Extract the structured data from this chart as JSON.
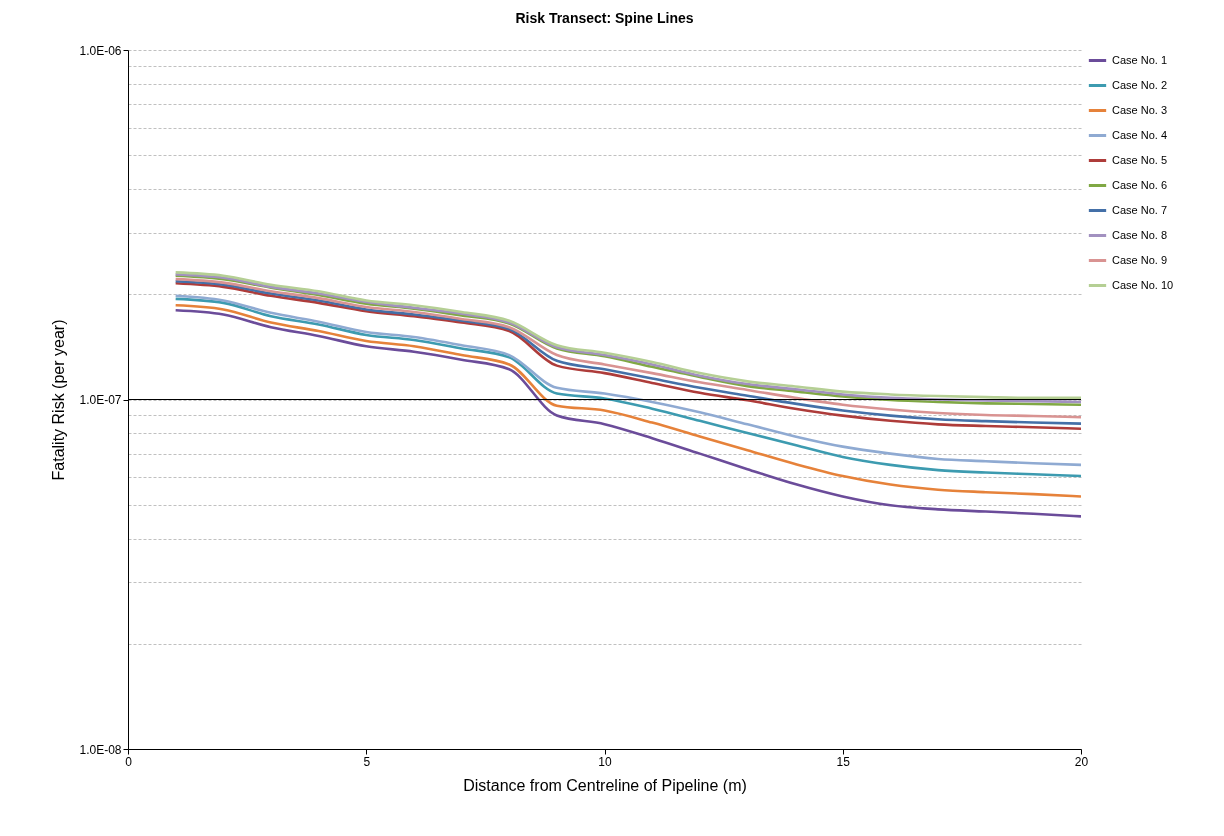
{
  "chart_data": {
    "type": "line",
    "title": "Risk Transect: Spine Lines",
    "xlabel": "Distance from Centreline of Pipeline (m)",
    "ylabel": "Fatality Risk (per year)",
    "x": [
      1,
      2,
      3,
      4,
      5,
      6,
      7,
      8,
      9,
      10,
      11,
      12,
      13,
      14,
      15,
      16,
      17,
      18,
      19,
      20
    ],
    "xlim": [
      0,
      20
    ],
    "xticks": [
      0,
      5,
      10,
      15,
      20
    ],
    "ylim": [
      1e-08,
      1e-06
    ],
    "log": true,
    "grid": "y",
    "legend": "right",
    "ref_lines": [
      {
        "axis": "y",
        "value": 1e-07,
        "color": "#000000"
      }
    ],
    "yticks": [
      {
        "value": 1e-08,
        "label": "1.0E-08"
      },
      {
        "value": 2e-08,
        "label": null
      },
      {
        "value": 3e-08,
        "label": null
      },
      {
        "value": 4e-08,
        "label": null
      },
      {
        "value": 5e-08,
        "label": null
      },
      {
        "value": 6e-08,
        "label": null
      },
      {
        "value": 7e-08,
        "label": null
      },
      {
        "value": 8e-08,
        "label": null
      },
      {
        "value": 9e-08,
        "label": null
      },
      {
        "value": 1e-07,
        "label": "1.0E-07"
      },
      {
        "value": 2e-07,
        "label": null
      },
      {
        "value": 3e-07,
        "label": null
      },
      {
        "value": 4e-07,
        "label": null
      },
      {
        "value": 5e-07,
        "label": null
      },
      {
        "value": 6e-07,
        "label": null
      },
      {
        "value": 7e-07,
        "label": null
      },
      {
        "value": 8e-07,
        "label": null
      },
      {
        "value": 9e-07,
        "label": null
      },
      {
        "value": 1e-06,
        "label": "1.0E-06"
      }
    ],
    "series": [
      {
        "name": "Case No. 1",
        "color": "#6b4c9a",
        "values": [
          1.8e-07,
          1.75e-07,
          1.61e-07,
          1.52e-07,
          1.42e-07,
          1.37e-07,
          1.3e-07,
          1.22e-07,
          9e-08,
          8.5e-08,
          7.75e-08,
          7e-08,
          6.32e-08,
          5.73e-08,
          5.28e-08,
          4.98e-08,
          4.85e-08,
          4.78e-08,
          4.71e-08,
          4.63e-08
        ]
      },
      {
        "name": "Case No. 2",
        "color": "#3d9bb0",
        "values": [
          1.94e-07,
          1.89e-07,
          1.73e-07,
          1.64e-07,
          1.53e-07,
          1.48e-07,
          1.4e-07,
          1.32e-07,
          1.04e-07,
          1.007e-07,
          9.41e-08,
          8.69e-08,
          8.02e-08,
          7.41e-08,
          6.85e-08,
          6.5e-08,
          6.28e-08,
          6.18e-08,
          6.11e-08,
          6.04e-08
        ]
      },
      {
        "name": "Case No. 3",
        "color": "#e6823a",
        "values": [
          1.86e-07,
          1.81e-07,
          1.66e-07,
          1.57e-07,
          1.47e-07,
          1.42e-07,
          1.34e-07,
          1.26e-07,
          9.6e-08,
          9.3e-08,
          8.59e-08,
          7.84e-08,
          7.16e-08,
          6.54e-08,
          6.04e-08,
          5.71e-08,
          5.52e-08,
          5.43e-08,
          5.36e-08,
          5.28e-08
        ]
      },
      {
        "name": "Case No. 4",
        "color": "#8faad2",
        "values": [
          1.98e-07,
          1.92e-07,
          1.77e-07,
          1.67e-07,
          1.56e-07,
          1.51e-07,
          1.43e-07,
          1.34e-07,
          1.08e-07,
          1.04e-07,
          9.84e-08,
          9.19e-08,
          8.49e-08,
          7.84e-08,
          7.33e-08,
          7e-08,
          6.76e-08,
          6.66e-08,
          6.57e-08,
          6.5e-08
        ]
      },
      {
        "name": "Case No. 5",
        "color": "#ae3c3a",
        "values": [
          2.15e-07,
          2.1e-07,
          1.98e-07,
          1.89e-07,
          1.79e-07,
          1.73e-07,
          1.66e-07,
          1.57e-07,
          1.25e-07,
          1.19e-07,
          1.115e-07,
          1.045e-07,
          9.95e-08,
          9.41e-08,
          8.99e-08,
          8.69e-08,
          8.49e-08,
          8.4e-08,
          8.33e-08,
          8.25e-08
        ]
      },
      {
        "name": "Case No. 6",
        "color": "#80a844",
        "values": [
          2.26e-07,
          2.21e-07,
          2.09e-07,
          1.99e-07,
          1.88e-07,
          1.82e-07,
          1.74e-07,
          1.65e-07,
          1.4e-07,
          1.33e-07,
          1.24e-07,
          1.16e-07,
          1.092e-07,
          1.055e-07,
          1.02e-07,
          9.97e-08,
          9.84e-08,
          9.75e-08,
          9.71e-08,
          9.66e-08
        ]
      },
      {
        "name": "Case No. 7",
        "color": "#4470a8",
        "values": [
          2.18e-07,
          2.13e-07,
          2.01e-07,
          1.92e-07,
          1.81e-07,
          1.75e-07,
          1.68e-07,
          1.59e-07,
          1.29e-07,
          1.22e-07,
          1.148e-07,
          1.08e-07,
          1.025e-07,
          9.73e-08,
          9.3e-08,
          8.99e-08,
          8.78e-08,
          8.67e-08,
          8.59e-08,
          8.53e-08
        ]
      },
      {
        "name": "Case No. 8",
        "color": "#a291c0",
        "values": [
          2.28e-07,
          2.23e-07,
          2.1e-07,
          2.01e-07,
          1.9e-07,
          1.83e-07,
          1.76e-07,
          1.66e-07,
          1.41e-07,
          1.34e-07,
          1.26e-07,
          1.17e-07,
          1.107e-07,
          1.07e-07,
          1.034e-07,
          1.011e-07,
          1e-07,
          9.93e-08,
          9.89e-08,
          9.84e-08
        ]
      },
      {
        "name": "Case No. 9",
        "color": "#d99392",
        "values": [
          2.21e-07,
          2.16e-07,
          2.04e-07,
          1.95e-07,
          1.84e-07,
          1.78e-07,
          1.7e-07,
          1.61e-07,
          1.34e-07,
          1.26e-07,
          1.19e-07,
          1.12e-07,
          1.065e-07,
          1.011e-07,
          9.66e-08,
          9.36e-08,
          9.15e-08,
          9.03e-08,
          8.97e-08,
          8.9e-08
        ]
      },
      {
        "name": "Case No. 10",
        "color": "#b5cf94",
        "values": [
          2.31e-07,
          2.26e-07,
          2.13e-07,
          2.04e-07,
          1.92e-07,
          1.86e-07,
          1.78e-07,
          1.68e-07,
          1.43e-07,
          1.36e-07,
          1.28e-07,
          1.19e-07,
          1.127e-07,
          1.09e-07,
          1.053e-07,
          1.034e-07,
          1.023e-07,
          1.016e-07,
          1.011e-07,
          1.011e-07
        ]
      }
    ]
  }
}
